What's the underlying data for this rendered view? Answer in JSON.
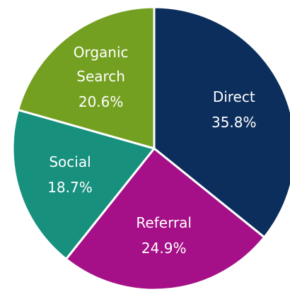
{
  "chart_data": {
    "type": "pie",
    "categories": [
      "Direct",
      "Referral",
      "Social",
      "Organic Search"
    ],
    "values": [
      35.8,
      24.9,
      18.7,
      20.6
    ],
    "value_labels": [
      "35.8%",
      "24.9%",
      "18.7%",
      "20.6%"
    ],
    "colors": [
      "#0c2e5c",
      "#a50f87",
      "#17907e",
      "#74a021"
    ]
  }
}
